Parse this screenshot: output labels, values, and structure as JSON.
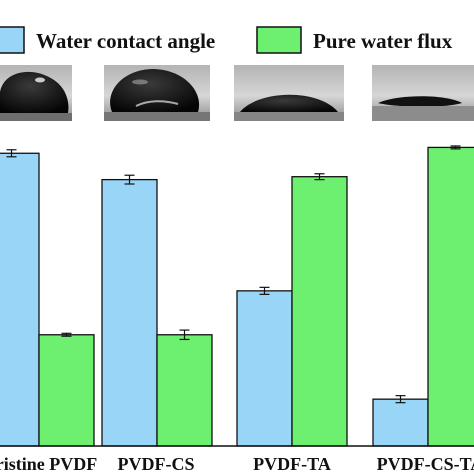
{
  "chart_data": {
    "type": "bar",
    "categories": [
      "Pristine PVDF",
      "PVDF-CS",
      "PVDF-TA",
      "PVDF-CS-TA"
    ],
    "series": [
      {
        "name": "Water contact angle",
        "color": "#99d5f7",
        "values": [
          100,
          91,
          53,
          16
        ],
        "errors": [
          1.2,
          1.5,
          1.2,
          1.2
        ]
      },
      {
        "name": "Pure water flux",
        "color": "#6df070",
        "values": [
          38,
          38,
          92,
          102
        ],
        "errors": [
          0.5,
          1.6,
          1.0,
          0.5
        ]
      }
    ],
    "ylim": [
      0,
      110
    ],
    "grid": false,
    "legend": "top",
    "xlabel": "",
    "ylabel": "",
    "droplet_images": [
      "water-droplet-photo",
      "water-droplet-photo",
      "water-droplet-photo",
      "water-droplet-photo"
    ]
  }
}
